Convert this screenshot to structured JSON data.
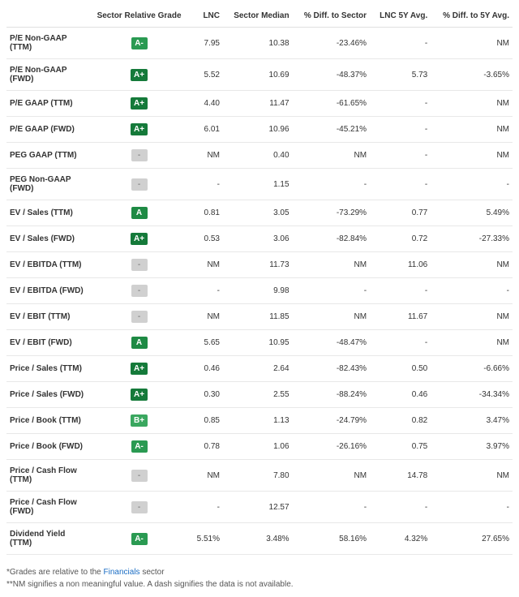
{
  "grade_colors": {
    "A+": "#157a3a",
    "A": "#1e8a44",
    "A-": "#2a9a52",
    "B+": "#3aa75f"
  },
  "columns": [
    "",
    "Sector Relative Grade",
    "LNC",
    "Sector Median",
    "% Diff. to Sector",
    "LNC 5Y Avg.",
    "% Diff. to 5Y Avg."
  ],
  "rows": [
    {
      "metric": "P/E Non-GAAP (TTM)",
      "grade": "A-",
      "lnc": "7.95",
      "median": "10.38",
      "diff_sector": "-23.46%",
      "avg5y": "-",
      "diff_5y": "NM"
    },
    {
      "metric": "P/E Non-GAAP (FWD)",
      "grade": "A+",
      "lnc": "5.52",
      "median": "10.69",
      "diff_sector": "-48.37%",
      "avg5y": "5.73",
      "diff_5y": "-3.65%"
    },
    {
      "metric": "P/E GAAP (TTM)",
      "grade": "A+",
      "lnc": "4.40",
      "median": "11.47",
      "diff_sector": "-61.65%",
      "avg5y": "-",
      "diff_5y": "NM"
    },
    {
      "metric": "P/E GAAP (FWD)",
      "grade": "A+",
      "lnc": "6.01",
      "median": "10.96",
      "diff_sector": "-45.21%",
      "avg5y": "-",
      "diff_5y": "NM"
    },
    {
      "metric": "PEG GAAP (TTM)",
      "grade": "-",
      "lnc": "NM",
      "median": "0.40",
      "diff_sector": "NM",
      "avg5y": "-",
      "diff_5y": "NM"
    },
    {
      "metric": "PEG Non-GAAP (FWD)",
      "grade": "-",
      "lnc": "-",
      "median": "1.15",
      "diff_sector": "-",
      "avg5y": "-",
      "diff_5y": "-"
    },
    {
      "metric": "EV / Sales (TTM)",
      "grade": "A",
      "lnc": "0.81",
      "median": "3.05",
      "diff_sector": "-73.29%",
      "avg5y": "0.77",
      "diff_5y": "5.49%"
    },
    {
      "metric": "EV / Sales (FWD)",
      "grade": "A+",
      "lnc": "0.53",
      "median": "3.06",
      "diff_sector": "-82.84%",
      "avg5y": "0.72",
      "diff_5y": "-27.33%"
    },
    {
      "metric": "EV / EBITDA (TTM)",
      "grade": "-",
      "lnc": "NM",
      "median": "11.73",
      "diff_sector": "NM",
      "avg5y": "11.06",
      "diff_5y": "NM"
    },
    {
      "metric": "EV / EBITDA (FWD)",
      "grade": "-",
      "lnc": "-",
      "median": "9.98",
      "diff_sector": "-",
      "avg5y": "-",
      "diff_5y": "-"
    },
    {
      "metric": "EV / EBIT (TTM)",
      "grade": "-",
      "lnc": "NM",
      "median": "11.85",
      "diff_sector": "NM",
      "avg5y": "11.67",
      "diff_5y": "NM"
    },
    {
      "metric": "EV / EBIT (FWD)",
      "grade": "A",
      "lnc": "5.65",
      "median": "10.95",
      "diff_sector": "-48.47%",
      "avg5y": "-",
      "diff_5y": "NM"
    },
    {
      "metric": "Price / Sales (TTM)",
      "grade": "A+",
      "lnc": "0.46",
      "median": "2.64",
      "diff_sector": "-82.43%",
      "avg5y": "0.50",
      "diff_5y": "-6.66%"
    },
    {
      "metric": "Price / Sales (FWD)",
      "grade": "A+",
      "lnc": "0.30",
      "median": "2.55",
      "diff_sector": "-88.24%",
      "avg5y": "0.46",
      "diff_5y": "-34.34%"
    },
    {
      "metric": "Price / Book (TTM)",
      "grade": "B+",
      "lnc": "0.85",
      "median": "1.13",
      "diff_sector": "-24.79%",
      "avg5y": "0.82",
      "diff_5y": "3.47%"
    },
    {
      "metric": "Price / Book (FWD)",
      "grade": "A-",
      "lnc": "0.78",
      "median": "1.06",
      "diff_sector": "-26.16%",
      "avg5y": "0.75",
      "diff_5y": "3.97%"
    },
    {
      "metric": "Price / Cash Flow (TTM)",
      "grade": "-",
      "lnc": "NM",
      "median": "7.80",
      "diff_sector": "NM",
      "avg5y": "14.78",
      "diff_5y": "NM"
    },
    {
      "metric": "Price / Cash Flow (FWD)",
      "grade": "-",
      "lnc": "-",
      "median": "12.57",
      "diff_sector": "-",
      "avg5y": "-",
      "diff_5y": "-"
    },
    {
      "metric": "Dividend Yield (TTM)",
      "grade": "A-",
      "lnc": "5.51%",
      "median": "3.48%",
      "diff_sector": "58.16%",
      "avg5y": "4.32%",
      "diff_5y": "27.65%"
    }
  ],
  "footnotes": {
    "line1_prefix": "*Grades are relative to the ",
    "line1_link": "Financials",
    "line1_suffix": " sector",
    "line2": "**NM signifies a non meaningful value. A dash signifies the data is not available."
  }
}
